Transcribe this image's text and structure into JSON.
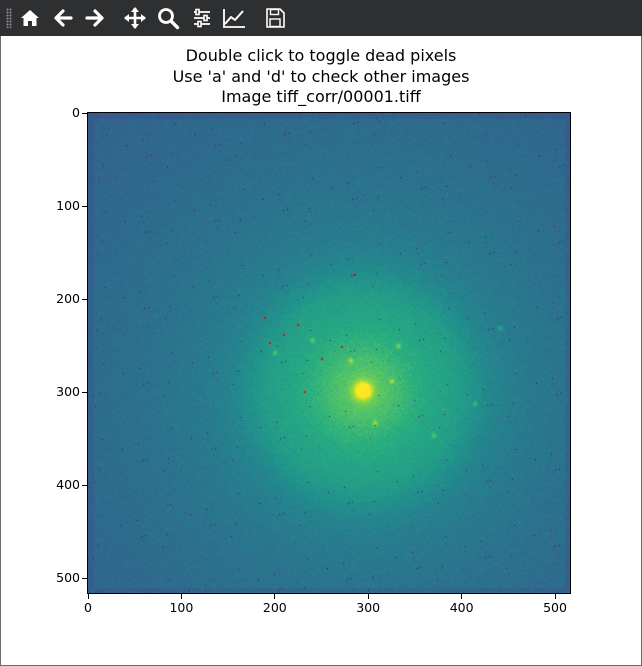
{
  "toolbar": {
    "buttons": [
      {
        "name": "home-button",
        "icon": "home-icon",
        "tooltip": "Reset original view"
      },
      {
        "name": "back-button",
        "icon": "arrow-left-icon",
        "tooltip": "Back to previous view"
      },
      {
        "name": "forward-button",
        "icon": "arrow-right-icon",
        "tooltip": "Forward to next view"
      },
      {
        "name": "pan-button",
        "icon": "move-arrows-icon",
        "tooltip": "Pan axes"
      },
      {
        "name": "zoom-button",
        "icon": "magnifier-icon",
        "tooltip": "Zoom to rectangle"
      },
      {
        "name": "configure-subplots-button",
        "icon": "sliders-icon",
        "tooltip": "Configure subplots"
      },
      {
        "name": "edit-axis-button",
        "icon": "line-chart-icon",
        "tooltip": "Edit axis"
      },
      {
        "name": "save-button",
        "icon": "floppy-disk-icon",
        "tooltip": "Save the figure"
      }
    ],
    "background": "#2e2f31",
    "icon_color": "#ffffff"
  },
  "figure": {
    "title_lines": [
      "Double click to toggle dead pixels",
      "Use 'a' and 'd' to check other images",
      "Image tiff_corr/00001.tiff"
    ]
  },
  "chart_data": {
    "type": "heatmap",
    "colormap": "viridis",
    "image_size": [
      516,
      516
    ],
    "xlim": [
      0,
      516
    ],
    "ylim": [
      516,
      0
    ],
    "xticks": [
      0,
      100,
      200,
      300,
      400,
      500
    ],
    "yticks": [
      0,
      100,
      200,
      300,
      400,
      500
    ],
    "xtick_labels": [
      "0",
      "100",
      "200",
      "300",
      "400",
      "500"
    ],
    "ytick_labels": [
      "0",
      "100",
      "200",
      "300",
      "400",
      "500"
    ],
    "beam_center": [
      294,
      298
    ],
    "bright_spots": [
      [
        370,
        346
      ],
      [
        307,
        333
      ],
      [
        281,
        266
      ],
      [
        200,
        257
      ],
      [
        332,
        250
      ],
      [
        441,
        231
      ],
      [
        240,
        244
      ],
      [
        325,
        288
      ],
      [
        414,
        312
      ]
    ],
    "dead_pixels": [
      [
        285,
        174
      ],
      [
        190,
        220
      ],
      [
        225,
        228
      ],
      [
        210,
        239
      ],
      [
        195,
        247
      ],
      [
        272,
        252
      ],
      [
        251,
        264
      ],
      [
        232,
        300
      ]
    ],
    "dead_pixel_color": "#ff0000"
  }
}
